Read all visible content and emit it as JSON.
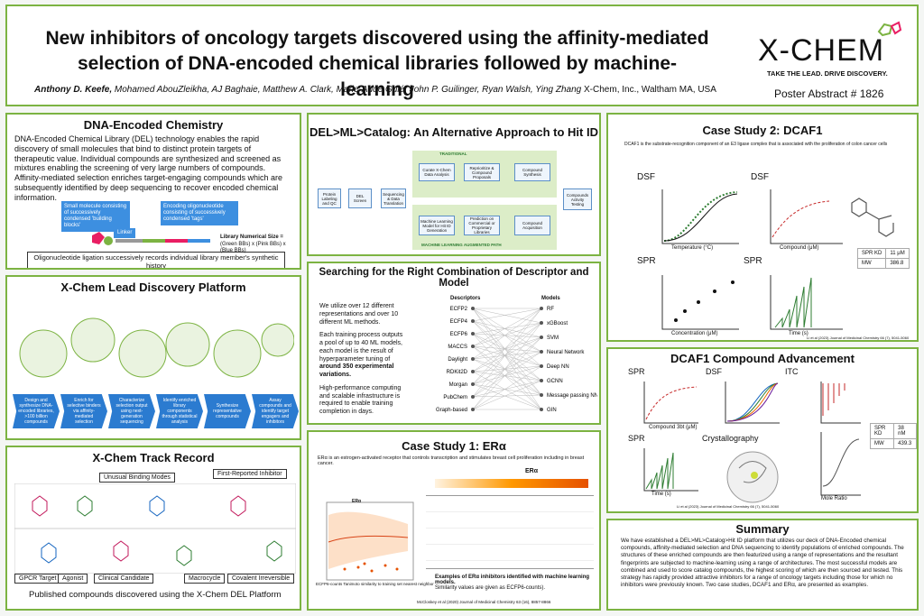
{
  "header": {
    "title_line1": "New inhibitors of oncology targets discovered using the affinity-mediated",
    "title_line2": "selection of DNA-encoded chemical libraries followed by machine-learning",
    "author_lead": "Anthony D. Keefe,",
    "authors": "Mohamed AbouZleikha, AJ Baghaie, Matthew A. Clark, Marie-Aude Guié, John P. Guilinger, Ryan Walsh, Ying Zhang",
    "affiliation": "X-Chem, Inc., Waltham MA, USA",
    "logo": "X-CHEM",
    "tagline": "TAKE THE LEAD. DRIVE DISCOVERY.",
    "abstract_number": "Poster Abstract # 1826"
  },
  "del_chemistry": {
    "title": "DNA-Encoded Chemistry",
    "body": "DNA-Encoded Chemical Library (DEL) technology enables the rapid discovery of small molecules that bind to distinct protein targets of therapeutic value. Individual compounds are synthesized and screened as mixtures enabling the screening of very large numbers of compounds. Affinity-mediated selection enriches target-engaging compounds which are subsequently identified by deep sequencing to recover encoded chemical information.",
    "callout_left": "Small molecule consisting of successively condensed 'building blocks'",
    "callout_right": "Encoding oligonucleotide consisting of successively condensed 'tags'",
    "linker": "Linker",
    "size_label": "Library Numerical Size =",
    "size_formula": "(Green BBs) x (Pink BBs) x (Blue BBs)",
    "caption": "Oligonucleotide ligation successively records individual library member's synthetic history"
  },
  "lead_platform": {
    "title": "X-Chem Lead Discovery Platform",
    "steps": [
      "Design and synthesize DNA-encoded libraries, >100 billion compounds",
      "Enrich for selective binders via affinity-mediated selection",
      "Characterize selection output using next-generation sequencing",
      "Identify enriched library components through statistical analysis",
      "Synthesize representative compounds",
      "Assay compounds and identify target engagers and inhibitors"
    ]
  },
  "track_record": {
    "title": "X-Chem Track Record",
    "labels": [
      "Unusual Binding Modes",
      "First-Reported Inhibitor",
      "GPCR Target",
      "Agonist",
      "Clinical Candidate",
      "Macrocycle",
      "Covalent Irreversible"
    ],
    "caption": "Published compounds discovered using the X-Chem DEL Platform"
  },
  "del_ml": {
    "title": "DEL>ML>Catalog: An Alternative Approach to Hit ID",
    "traditional": "TRADITIONAL",
    "ml_path": "MACHINE LEARNING AUGMENTED PATH",
    "boxes": [
      "Protein Labeling and QC",
      "DEL Screen",
      "Sequencing & Data Translation",
      "Curate X-Chem Data Analysis",
      "Reprioritize & Compound Proposals",
      "Compound Synthesis",
      "Machine Learning Model for Hit ID Generation",
      "Prediction on Commercial or Proprietary Libraries",
      "Compound Acquisition",
      "Compounds Activity Testing"
    ]
  },
  "searching": {
    "title": "Searching for the Right Combination of Descriptor and Model",
    "p1": "We utilize over 12 different representations and over 10 different ML methods.",
    "p2a": "Each training process outputs a pool of up to 40 ML models, each model is the result of hyperparameter tuning of ",
    "p2b": "around 350 experimental variations.",
    "p3": "High-performance computing and scalable infrastructure is required to enable training completion in days.",
    "descriptors_header": "Descriptors",
    "descriptors": [
      "ECFP2",
      "ECFP4",
      "ECFP6",
      "MACCS",
      "Daylight",
      "RDKit2D",
      "Morgan",
      "PubChem",
      "Graph-based"
    ],
    "models_header": "Models",
    "models": [
      "RF",
      "xGBoost",
      "SVM",
      "Neural Network",
      "Deep NN",
      "GCNN",
      "Message passing NN",
      "GIN"
    ]
  },
  "case1": {
    "title": "Case Study 1: ERα",
    "intro": "ERα is an estrogen-activated receptor that controls transcription and stimulates breast cell proliferation including in breast cancer.",
    "heatmap_label": "ERα",
    "plot_title": "ERα",
    "plot_xlabel": "ECFP6-counts Tanimoto similarity to training set nearest neighbor",
    "caption_bold": "Examples of ERα inhibitors identified with machine learning models.",
    "caption_rest": "Similarity values are given as ECFP6-counts).",
    "citation": "McCloskey et al (2020) Journal of Medicinal Chemistry 63 (16), 8857-8866"
  },
  "case2": {
    "title": "Case Study 2: DCAF1",
    "intro": "DCAF1 is the substrate-recognition component of an E3 ligase complex that is associated with the proliferation of colon cancer cells",
    "dsf1": "DSF",
    "dsf2": "DSF",
    "spr1": "SPR",
    "spr2": "SPR",
    "x_temp": "Temperature (°C)",
    "x_comp": "Compound (μM)",
    "x_conc": "Concentration (μM)",
    "x_time": "Time (s)",
    "table": [
      [
        "SPR KD",
        "11 μM"
      ],
      [
        "MW",
        "386.8"
      ]
    ],
    "citation": "Li et al (2023) Journal of Medicinal Chemistry 66 (7), 5041-5060"
  },
  "advancement": {
    "title": "DCAF1 Compound Advancement",
    "spr1": "SPR",
    "dsf": "DSF",
    "itc": "ITC",
    "spr2": "SPR",
    "cryst": "Crystallography",
    "x_spr": "Compound 3bt (μM)",
    "x_time": "Time (s)",
    "x_itc": "Mole Ratio",
    "table": [
      [
        "SPR KD",
        "38 nM"
      ],
      [
        "MW",
        "439.3"
      ]
    ],
    "citation": "Li et al (2023) Journal of Medicinal Chemistry 66 (7), 5041-5060"
  },
  "summary": {
    "title": "Summary",
    "body": "We have established a DEL>ML>Catalog>Hit ID platform that utilizes our deck of DNA-Encoded chemical compounds, affinity-mediated selection and DNA sequencing to identify populations of enriched compounds. The structures of these enriched compounds are then featurized using a range of representations and the resultant fingerprints are subjected to machine-learning using a range of architectures. The most successful models are combined and used to score catalog compounds, the highest scoring of which are then sourced and tested. This strategy has rapidly provided attractive inhibitors for a range of oncology targets including those for which no inhibitors were previously known. Two case studies, DCAF1 and ERα, are presented as examples."
  }
}
